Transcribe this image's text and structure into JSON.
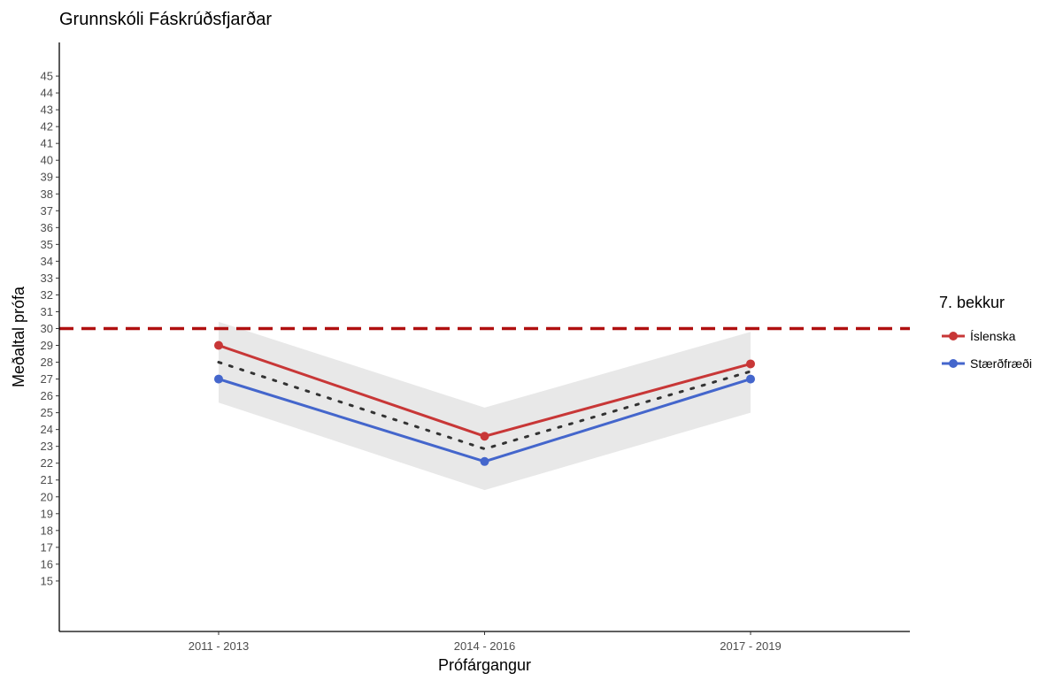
{
  "chart_data": {
    "type": "line",
    "title": "Grunnskóli Fáskrúðsfjarðar",
    "xlabel": "Prófárgangur",
    "ylabel": "Meðaltal prófa",
    "categories": [
      "2011 - 2013",
      "2014 - 2016",
      "2017 - 2019"
    ],
    "ylim": [
      12,
      47
    ],
    "yticks": [
      15,
      16,
      17,
      18,
      19,
      20,
      21,
      22,
      23,
      24,
      25,
      26,
      27,
      28,
      29,
      30,
      31,
      32,
      33,
      34,
      35,
      36,
      37,
      38,
      39,
      40,
      41,
      42,
      43,
      44,
      45
    ],
    "series": [
      {
        "name": "Íslenska",
        "values": [
          29.0,
          23.6,
          27.9
        ],
        "color": "#c83737"
      },
      {
        "name": "Stærðfræði",
        "values": [
          27.0,
          22.1,
          27.0
        ],
        "color": "#4466cc"
      }
    ],
    "mean_line": {
      "values": [
        28.0,
        22.85,
        27.45
      ],
      "style": "dotted",
      "color": "#333333"
    },
    "band": {
      "lower": [
        25.6,
        20.4,
        25.0
      ],
      "upper": [
        30.4,
        25.3,
        29.8
      ],
      "color": "#e8e8e8"
    },
    "reference_line": {
      "value": 30,
      "style": "dashed",
      "color": "#b01010"
    },
    "legend": {
      "title": "7. bekkur",
      "position": "right"
    },
    "grid": false
  }
}
